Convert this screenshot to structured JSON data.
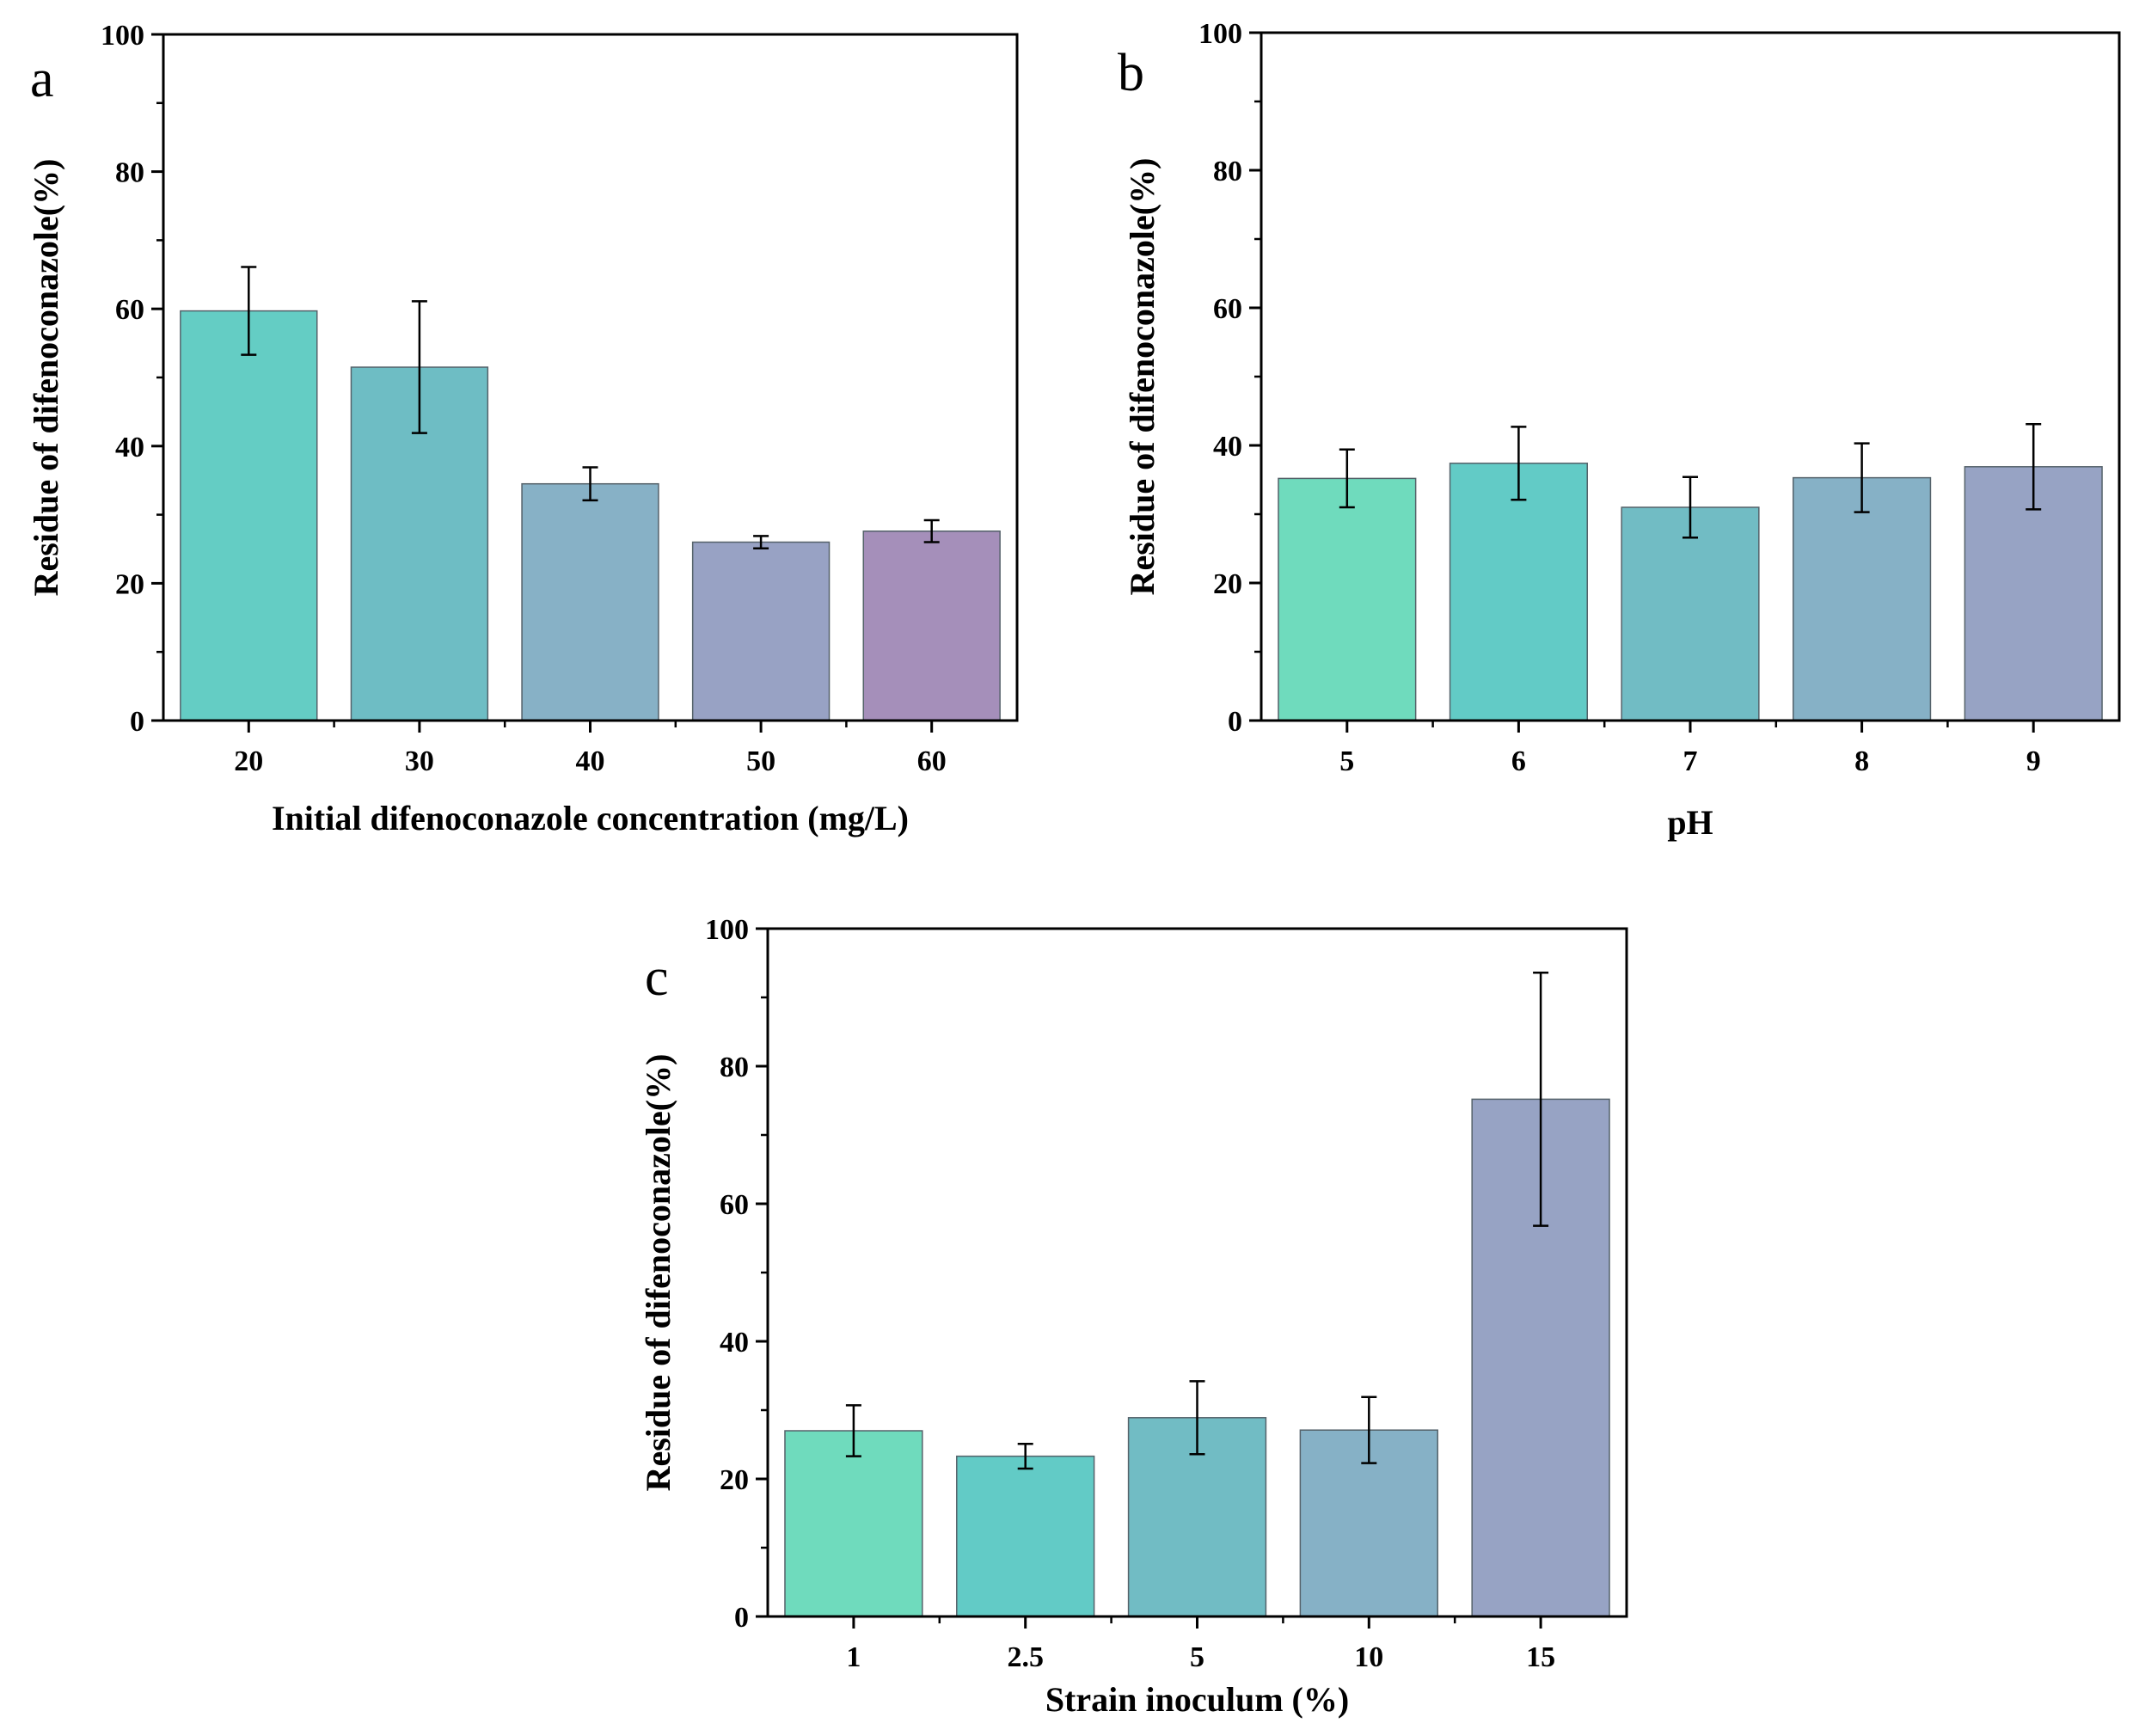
{
  "chart_data": [
    {
      "type": "bar",
      "panel_label": "a",
      "categories": [
        "20",
        "30",
        "40",
        "50",
        "60"
      ],
      "values": [
        59.7,
        51.5,
        34.5,
        26.0,
        27.6
      ],
      "errors": [
        6.4,
        9.6,
        2.4,
        0.9,
        1.6
      ],
      "colors": [
        "#64cdc4",
        "#6ebdc4",
        "#87b1c6",
        "#98a2c4",
        "#a58fba"
      ],
      "xlabel": "Initial difenoconazole concentration (mg/L)",
      "ylabel": "Residue of difenoconazole(%)",
      "ylim": [
        0,
        100
      ],
      "yticks": [
        "0",
        "20",
        "40",
        "60",
        "80",
        "100"
      ]
    },
    {
      "type": "bar",
      "panel_label": "b",
      "categories": [
        "5",
        "6",
        "7",
        "8",
        "9"
      ],
      "values": [
        35.2,
        37.4,
        31.0,
        35.3,
        36.9
      ],
      "errors": [
        4.2,
        5.3,
        4.4,
        5.0,
        6.2
      ],
      "colors": [
        "#6fdbbd",
        "#62cbc6",
        "#71bcc4",
        "#86b1c6",
        "#97a3c4"
      ],
      "xlabel": "pH",
      "ylabel": "Residue of difenoconazole(%)",
      "ylim": [
        0,
        100
      ],
      "yticks": [
        "0",
        "20",
        "40",
        "60",
        "80",
        "100"
      ]
    },
    {
      "type": "bar",
      "panel_label": "c",
      "categories": [
        "1",
        "2.5",
        "5",
        "10",
        "15"
      ],
      "values": [
        27.0,
        23.3,
        28.9,
        27.1,
        75.2
      ],
      "errors": [
        3.7,
        1.8,
        5.3,
        4.8,
        18.4
      ],
      "colors": [
        "#6fdbbd",
        "#62cbc6",
        "#71bcc4",
        "#86b1c6",
        "#97a3c4"
      ],
      "xlabel": "Strain inoculum (%)",
      "ylabel": "Residue of difenoconazole(%)",
      "ylim": [
        0,
        100
      ],
      "yticks": [
        "0",
        "20",
        "40",
        "60",
        "80",
        "100"
      ]
    }
  ]
}
